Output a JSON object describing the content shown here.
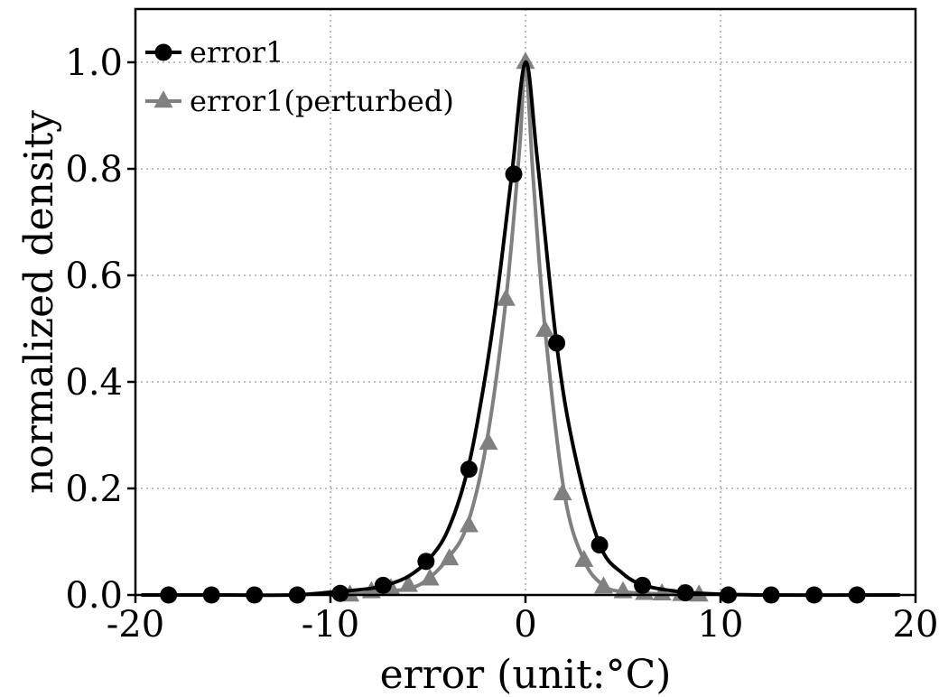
{
  "chart_data": {
    "type": "line",
    "xlabel": "error (unit:°C)",
    "ylabel": "normalized density",
    "xlim": [
      -20,
      20
    ],
    "ylim": [
      0,
      1.1
    ],
    "xticks": [
      "-20",
      "-10",
      "0",
      "10",
      "20"
    ],
    "yticks": [
      "0.0",
      "0.2",
      "0.4",
      "0.6",
      "0.8",
      "1.0"
    ],
    "grid": true,
    "legend_position": "top-left",
    "series": [
      {
        "name": "error1",
        "color": "#000000",
        "marker": "circle",
        "curve": [
          {
            "x": -19.7,
            "y": 0.0
          },
          {
            "x": -16,
            "y": 0.0
          },
          {
            "x": -12,
            "y": 0.0
          },
          {
            "x": -10,
            "y": 0.005
          },
          {
            "x": -8,
            "y": 0.012
          },
          {
            "x": -7,
            "y": 0.02
          },
          {
            "x": -6,
            "y": 0.035
          },
          {
            "x": -5,
            "y": 0.065
          },
          {
            "x": -4,
            "y": 0.12
          },
          {
            "x": -3,
            "y": 0.23
          },
          {
            "x": -2.2,
            "y": 0.38
          },
          {
            "x": -1.5,
            "y": 0.55
          },
          {
            "x": -0.7,
            "y": 0.79
          },
          {
            "x": 0,
            "y": 1.0
          },
          {
            "x": 0.6,
            "y": 0.82
          },
          {
            "x": 1.6,
            "y": 0.47
          },
          {
            "x": 2.5,
            "y": 0.27
          },
          {
            "x": 3.8,
            "y": 0.095
          },
          {
            "x": 5,
            "y": 0.04
          },
          {
            "x": 6.1,
            "y": 0.018
          },
          {
            "x": 7.5,
            "y": 0.008
          },
          {
            "x": 9,
            "y": 0.003
          },
          {
            "x": 12,
            "y": 0.0
          },
          {
            "x": 19.2,
            "y": 0.0
          }
        ],
        "markers": [
          {
            "x": -18.3,
            "y": 0.0
          },
          {
            "x": -16.1,
            "y": 0.0
          },
          {
            "x": -13.9,
            "y": 0.0
          },
          {
            "x": -11.7,
            "y": 0.0
          },
          {
            "x": -9.5,
            "y": 0.003
          },
          {
            "x": -7.3,
            "y": 0.018
          },
          {
            "x": -5.1,
            "y": 0.063
          },
          {
            "x": -2.9,
            "y": 0.236
          },
          {
            "x": -0.6,
            "y": 0.79
          },
          {
            "x": 1.6,
            "y": 0.473
          },
          {
            "x": 3.8,
            "y": 0.094
          },
          {
            "x": 6.0,
            "y": 0.018
          },
          {
            "x": 8.2,
            "y": 0.004
          },
          {
            "x": 10.4,
            "y": 0.0
          },
          {
            "x": 12.6,
            "y": 0.0
          },
          {
            "x": 14.8,
            "y": 0.0
          },
          {
            "x": 17.0,
            "y": 0.0
          }
        ]
      },
      {
        "name": "error1(perturbed)",
        "color": "#808080",
        "marker": "triangle",
        "curve": [
          {
            "x": -10,
            "y": 0.0
          },
          {
            "x": -8,
            "y": 0.004
          },
          {
            "x": -6,
            "y": 0.012
          },
          {
            "x": -5,
            "y": 0.03
          },
          {
            "x": -4,
            "y": 0.068
          },
          {
            "x": -3,
            "y": 0.13
          },
          {
            "x": -2,
            "y": 0.285
          },
          {
            "x": -1,
            "y": 0.555
          },
          {
            "x": -0.3,
            "y": 0.84
          },
          {
            "x": 0,
            "y": 1.0
          },
          {
            "x": 0.4,
            "y": 0.78
          },
          {
            "x": 1,
            "y": 0.5
          },
          {
            "x": 2,
            "y": 0.19
          },
          {
            "x": 3,
            "y": 0.065
          },
          {
            "x": 4,
            "y": 0.018
          },
          {
            "x": 5,
            "y": 0.006
          },
          {
            "x": 7,
            "y": 0.002
          },
          {
            "x": 9,
            "y": 0.0
          }
        ],
        "markers": [
          {
            "x": -9.0,
            "y": 0.0
          },
          {
            "x": -7.9,
            "y": 0.006
          },
          {
            "x": -6.9,
            "y": 0.012
          },
          {
            "x": -6.0,
            "y": 0.018
          },
          {
            "x": -4.9,
            "y": 0.03
          },
          {
            "x": -3.9,
            "y": 0.068
          },
          {
            "x": -2.9,
            "y": 0.13
          },
          {
            "x": -1.9,
            "y": 0.285
          },
          {
            "x": -1.0,
            "y": 0.555
          },
          {
            "x": 0.0,
            "y": 1.0
          },
          {
            "x": 1.0,
            "y": 0.497
          },
          {
            "x": 1.9,
            "y": 0.19
          },
          {
            "x": 3.0,
            "y": 0.065
          },
          {
            "x": 4.0,
            "y": 0.015
          },
          {
            "x": 5.0,
            "y": 0.006
          },
          {
            "x": 6.1,
            "y": 0.003
          },
          {
            "x": 7.0,
            "y": 0.002
          },
          {
            "x": 8.0,
            "y": 0.001
          },
          {
            "x": 8.9,
            "y": 0.0
          }
        ]
      }
    ]
  }
}
